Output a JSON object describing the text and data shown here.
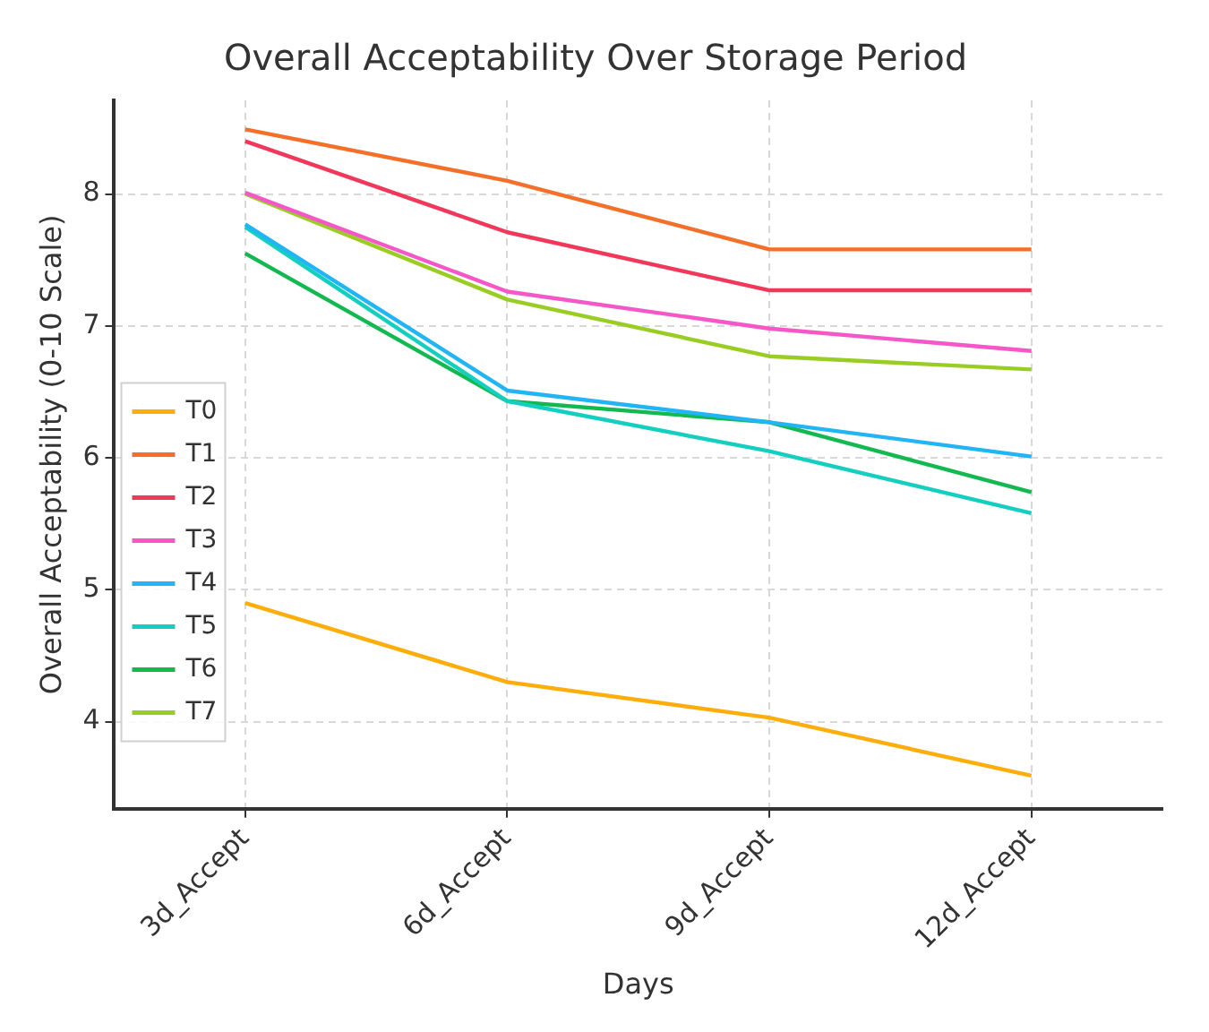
{
  "chart_data": {
    "type": "line",
    "title": "Overall Acceptability Over Storage Period",
    "xlabel": "Days",
    "ylabel": "Overall Acceptability (0-10 Scale)",
    "categories": [
      "3d_Accept",
      "6d_Accept",
      "9d_Accept",
      "12d_Accept"
    ],
    "ylim": [
      3.34,
      8.71
    ],
    "yticks": [
      4,
      5,
      6,
      7,
      8
    ],
    "grid": true,
    "legend": "left",
    "marker": "none",
    "line_style": "solid",
    "series": [
      {
        "name": "T0",
        "color": "#ffad0a",
        "values": [
          4.9,
          4.3,
          4.03,
          3.59
        ]
      },
      {
        "name": "T1",
        "color": "#f36f2a",
        "values": [
          8.49,
          8.1,
          7.58,
          7.58
        ]
      },
      {
        "name": "T2",
        "color": "#f0385a",
        "values": [
          8.4,
          7.71,
          7.27,
          7.27
        ]
      },
      {
        "name": "T3",
        "color": "#f556c8",
        "values": [
          8.01,
          7.26,
          6.98,
          6.81
        ]
      },
      {
        "name": "T4",
        "color": "#22b5f5",
        "values": [
          7.77,
          6.51,
          6.27,
          6.01
        ]
      },
      {
        "name": "T5",
        "color": "#14cfc0",
        "values": [
          7.75,
          6.43,
          6.05,
          5.58
        ]
      },
      {
        "name": "T6",
        "color": "#12b850",
        "values": [
          7.55,
          6.43,
          6.27,
          5.74
        ]
      },
      {
        "name": "T7",
        "color": "#9acd24",
        "values": [
          8.0,
          7.2,
          6.77,
          6.67
        ]
      }
    ]
  }
}
